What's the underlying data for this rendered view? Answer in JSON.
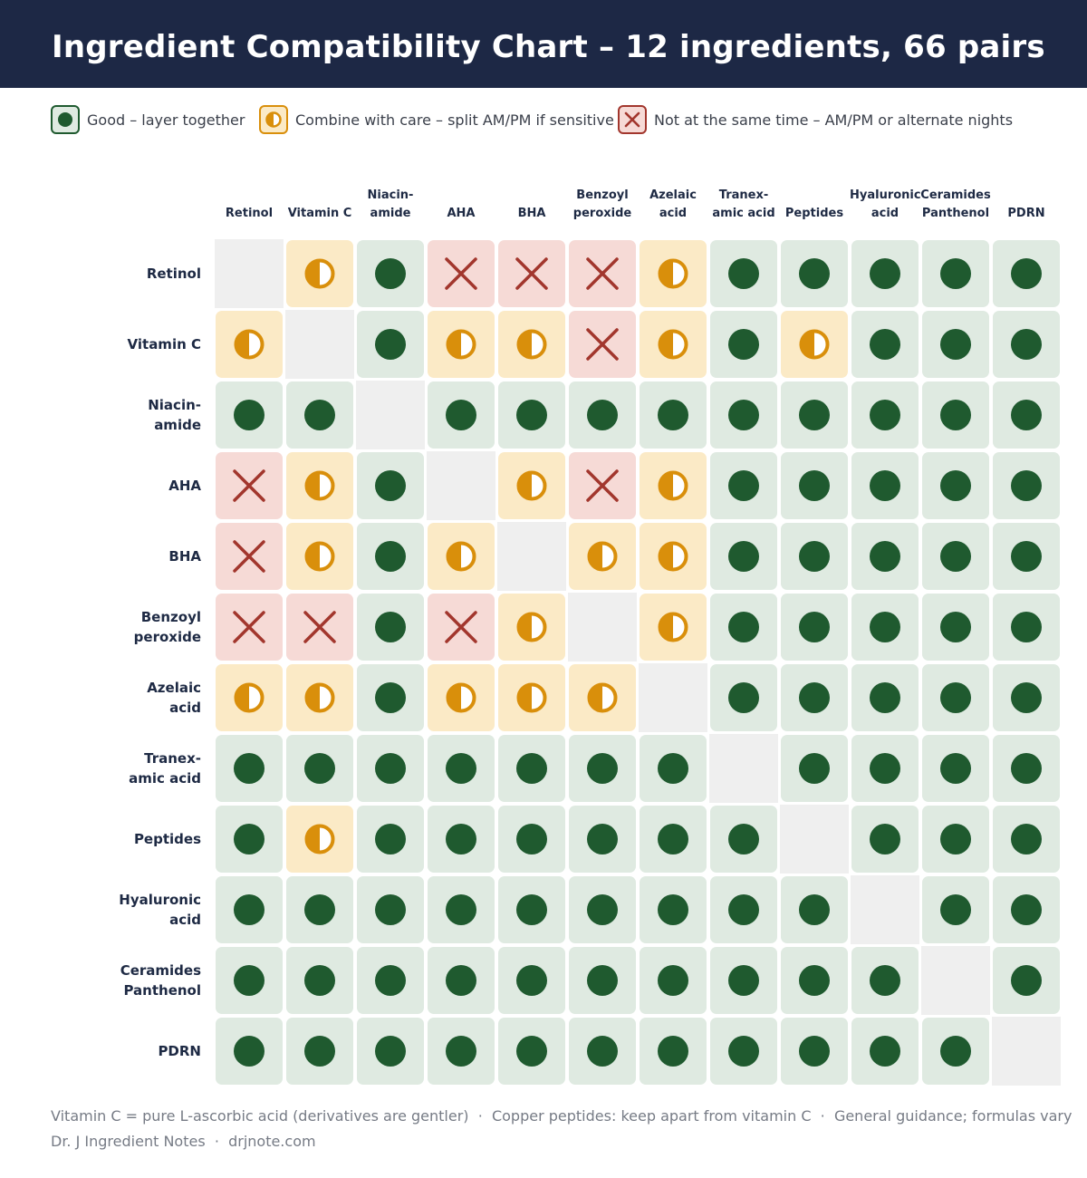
{
  "title": "Ingredient Compatibility Chart – 12 ingredients, 66 pairs",
  "legend": {
    "good": "Good – layer together",
    "care": "Combine with care – split AM/PM if sensitive",
    "no": "Not at the same time – AM/PM or alternate nights"
  },
  "colors": {
    "header_bg": "#1d2845",
    "good_fill": "#dfeae1",
    "good_mark": "#1f5a2f",
    "care_fill": "#fbeac6",
    "care_mark": "#d98f0b",
    "no_fill": "#f6dad6",
    "no_mark": "#a2362d",
    "self_fill": "#efefef"
  },
  "icons": {
    "good": "filled-circle-icon",
    "care": "half-circle-icon",
    "no": "x-mark-icon"
  },
  "chart_data": {
    "type": "heatmap",
    "title": "Ingredient Compatibility Chart – 12 ingredients, 66 pairs",
    "columns": [
      [
        "Retinol"
      ],
      [
        "Vitamin C"
      ],
      [
        "Niacin-",
        "amide"
      ],
      [
        "AHA"
      ],
      [
        "BHA"
      ],
      [
        "Benzoyl",
        "peroxide"
      ],
      [
        "Azelaic",
        "acid"
      ],
      [
        "Tranex-",
        "amic acid"
      ],
      [
        "Peptides"
      ],
      [
        "Hyaluronic",
        "acid"
      ],
      [
        "Ceramides",
        "Panthenol"
      ],
      [
        "PDRN"
      ]
    ],
    "rows": [
      [
        "Retinol"
      ],
      [
        "Vitamin C"
      ],
      [
        "Niacin-",
        "amide"
      ],
      [
        "AHA"
      ],
      [
        "BHA"
      ],
      [
        "Benzoyl",
        "peroxide"
      ],
      [
        "Azelaic",
        "acid"
      ],
      [
        "Tranex-",
        "amic acid"
      ],
      [
        "Peptides"
      ],
      [
        "Hyaluronic",
        "acid"
      ],
      [
        "Ceramides",
        "Panthenol"
      ],
      [
        "PDRN"
      ]
    ],
    "legend_order": [
      "good",
      "care",
      "no"
    ],
    "matrix": [
      [
        "self",
        "care",
        "good",
        "no",
        "no",
        "no",
        "care",
        "good",
        "good",
        "good",
        "good",
        "good"
      ],
      [
        "care",
        "self",
        "good",
        "care",
        "care",
        "no",
        "care",
        "good",
        "care",
        "good",
        "good",
        "good"
      ],
      [
        "good",
        "good",
        "self",
        "good",
        "good",
        "good",
        "good",
        "good",
        "good",
        "good",
        "good",
        "good"
      ],
      [
        "no",
        "care",
        "good",
        "self",
        "care",
        "no",
        "care",
        "good",
        "good",
        "good",
        "good",
        "good"
      ],
      [
        "no",
        "care",
        "good",
        "care",
        "self",
        "care",
        "care",
        "good",
        "good",
        "good",
        "good",
        "good"
      ],
      [
        "no",
        "no",
        "good",
        "no",
        "care",
        "self",
        "care",
        "good",
        "good",
        "good",
        "good",
        "good"
      ],
      [
        "care",
        "care",
        "good",
        "care",
        "care",
        "care",
        "self",
        "good",
        "good",
        "good",
        "good",
        "good"
      ],
      [
        "good",
        "good",
        "good",
        "good",
        "good",
        "good",
        "good",
        "self",
        "good",
        "good",
        "good",
        "good"
      ],
      [
        "good",
        "care",
        "good",
        "good",
        "good",
        "good",
        "good",
        "good",
        "self",
        "good",
        "good",
        "good"
      ],
      [
        "good",
        "good",
        "good",
        "good",
        "good",
        "good",
        "good",
        "good",
        "good",
        "self",
        "good",
        "good"
      ],
      [
        "good",
        "good",
        "good",
        "good",
        "good",
        "good",
        "good",
        "good",
        "good",
        "good",
        "self",
        "good"
      ],
      [
        "good",
        "good",
        "good",
        "good",
        "good",
        "good",
        "good",
        "good",
        "good",
        "good",
        "good",
        "self"
      ]
    ]
  },
  "footnotes": {
    "line1": "Vitamin C = pure L-ascorbic acid (derivatives are gentler)  ·  Copper peptides: keep apart from vitamin C  ·  General guidance; formulas vary",
    "line2": "Dr. J Ingredient Notes  ·  drjnote.com"
  }
}
